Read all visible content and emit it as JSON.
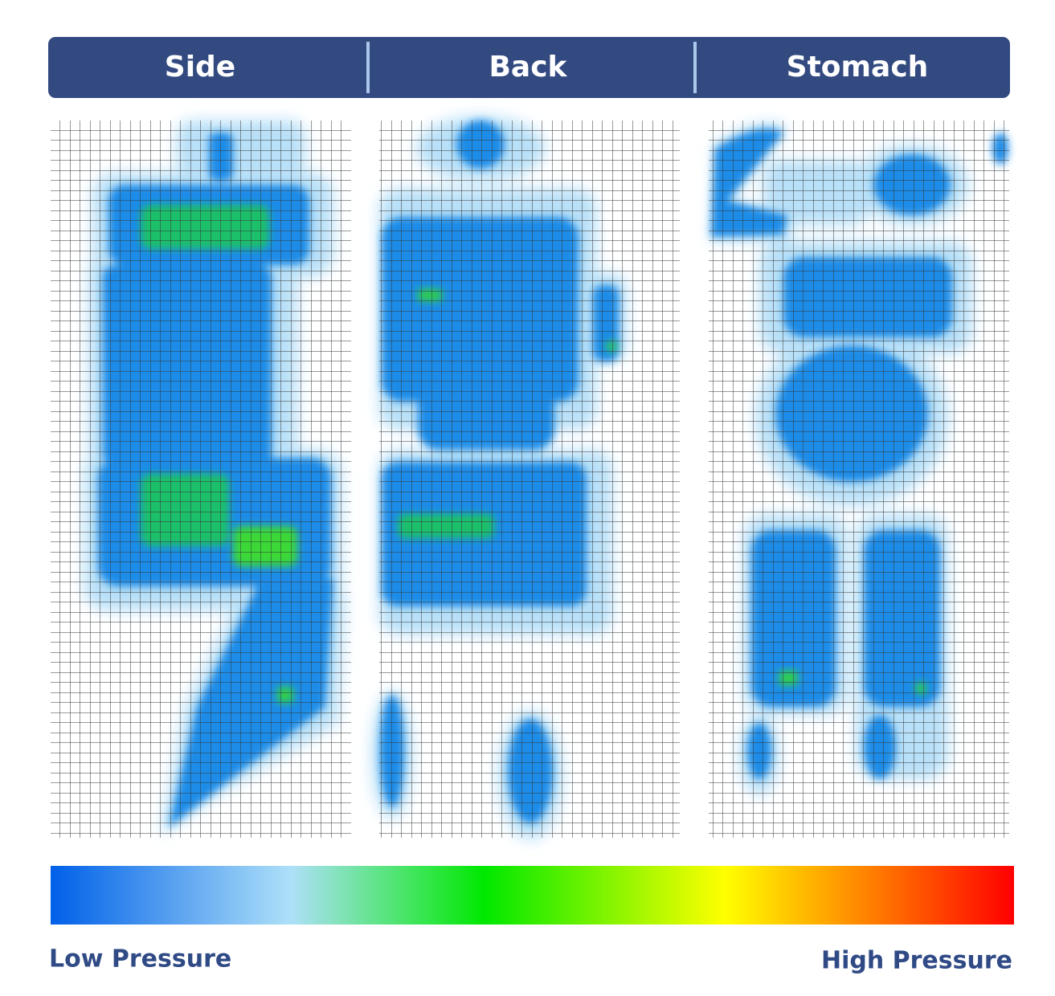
{
  "tabs": [
    "Side",
    "Back",
    "Stomach"
  ],
  "legend": {
    "low_label": "Low Pressure",
    "high_label": "High Pressure"
  }
}
